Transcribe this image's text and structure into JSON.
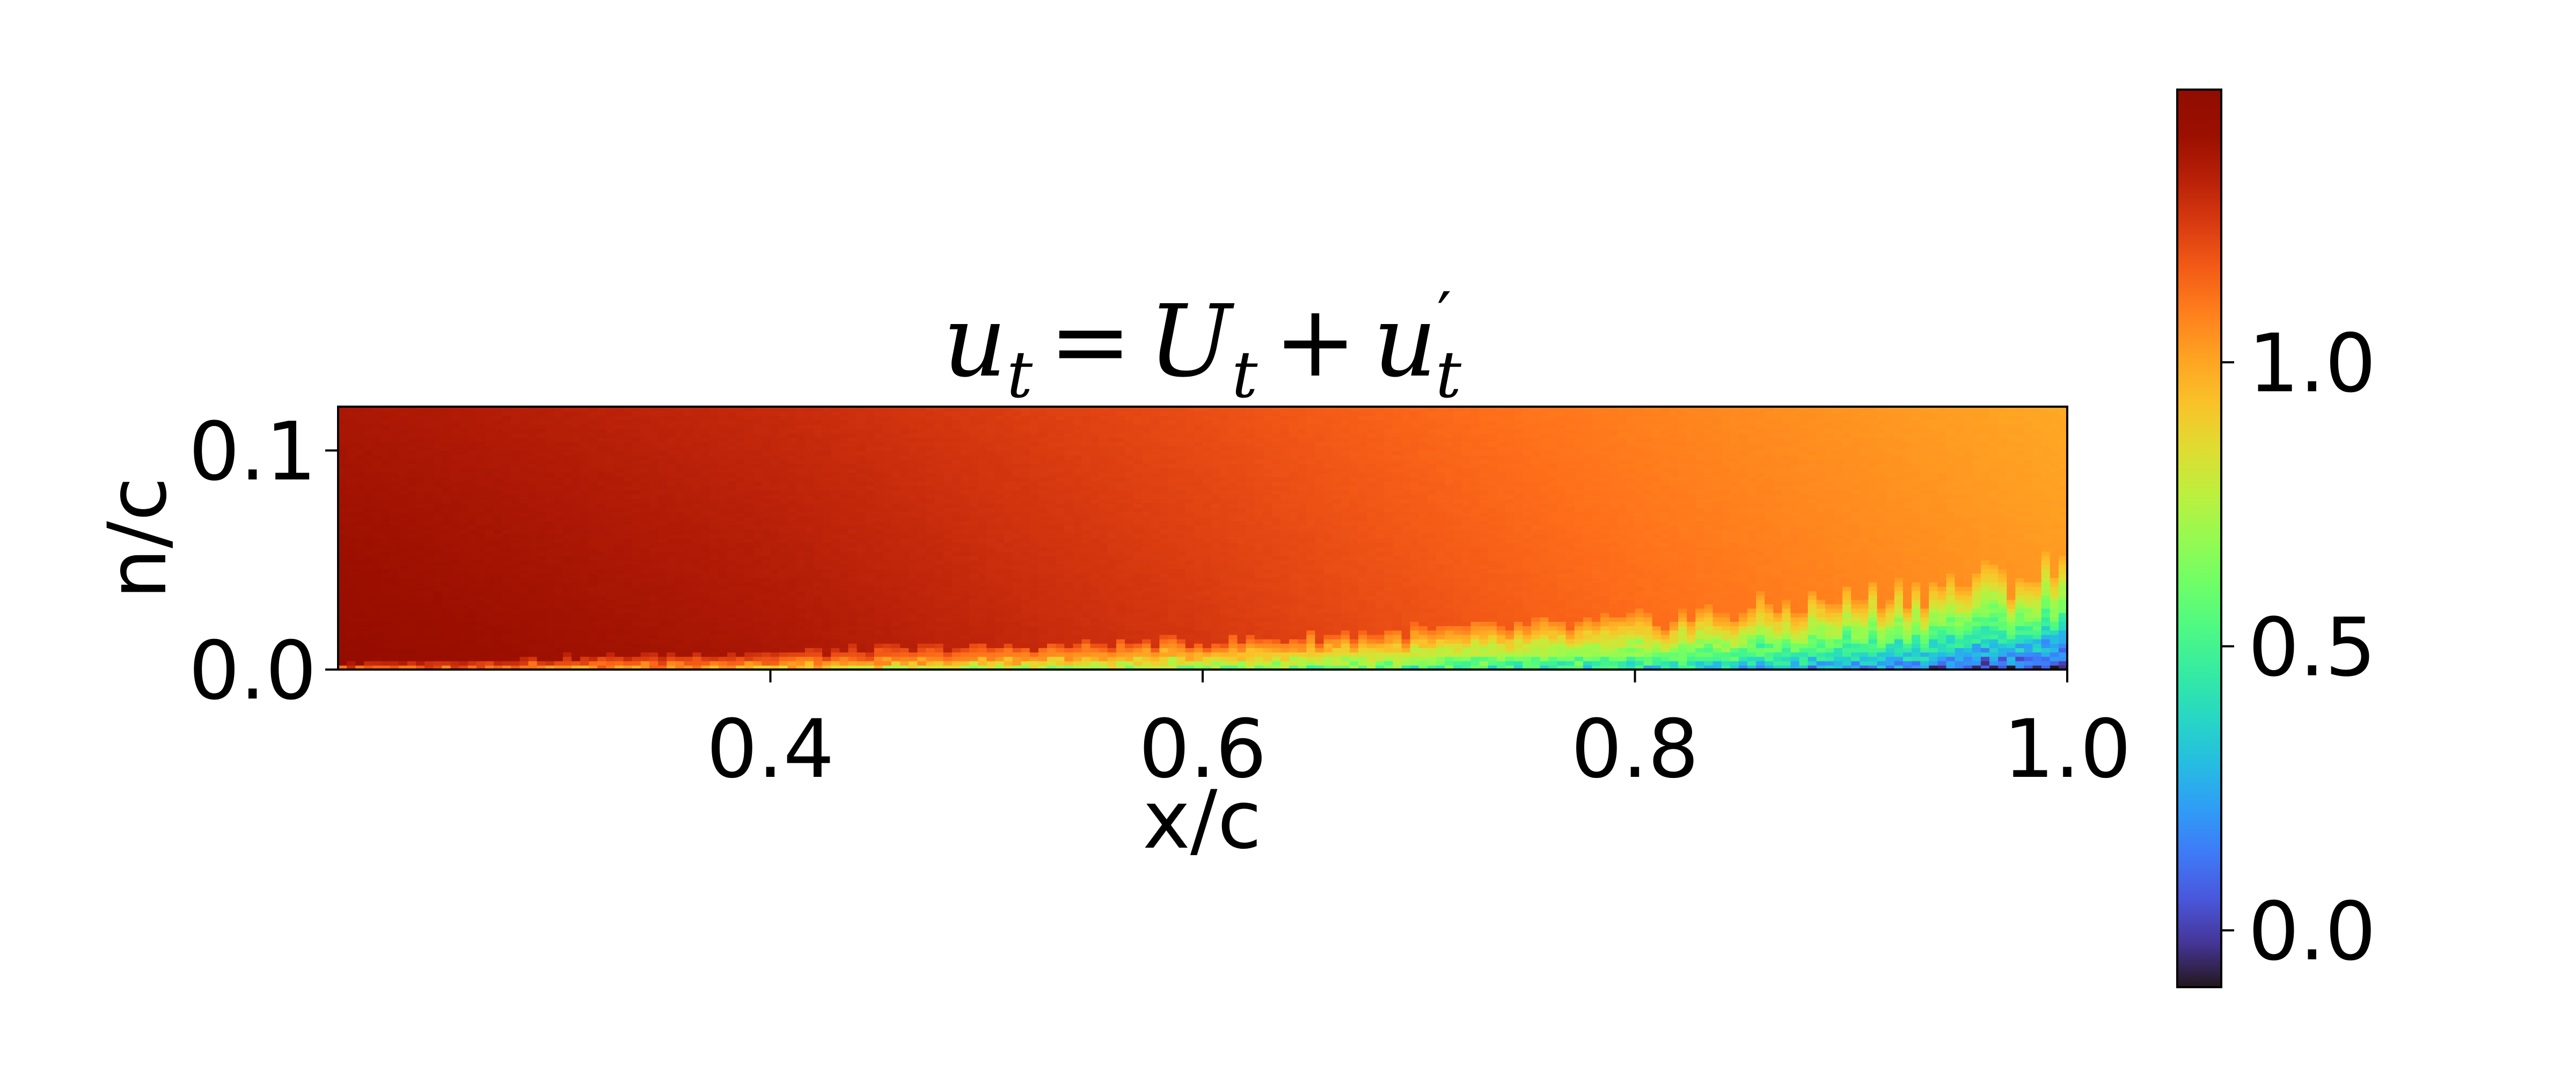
{
  "chart_data": {
    "type": "heatmap",
    "title": "u_t = U_t + u′_t",
    "title_parts": {
      "lhs": "u",
      "lhs_sub": "t",
      "eq": "=",
      "mid": "U",
      "mid_sub": "t",
      "plus": "+",
      "rhs": "u",
      "rhs_prime": "′",
      "rhs_sub": "t"
    },
    "xlabel": "x/c",
    "ylabel": "n/c",
    "xlim": [
      0.2,
      1.0
    ],
    "ylim": [
      0.0,
      0.12
    ],
    "xticks": [
      {
        "value": 0.4,
        "label": "0.4"
      },
      {
        "value": 0.6,
        "label": "0.6"
      },
      {
        "value": 0.8,
        "label": "0.8"
      },
      {
        "value": 1.0,
        "label": "1.0"
      }
    ],
    "yticks": [
      {
        "value": 0.0,
        "label": "0.0"
      },
      {
        "value": 0.1,
        "label": "0.1"
      }
    ],
    "colormap": "turbo",
    "colorbar": {
      "range": [
        -0.1,
        1.48
      ],
      "ticks": [
        {
          "value": 0.0,
          "label": "0.0"
        },
        {
          "value": 0.5,
          "label": "0.5"
        },
        {
          "value": 1.0,
          "label": "1.0"
        }
      ]
    },
    "field_description": {
      "freestream_value_at_x": [
        [
          0.2,
          1.45
        ],
        [
          0.4,
          1.38
        ],
        [
          0.6,
          1.28
        ],
        [
          0.8,
          1.16
        ],
        [
          1.0,
          1.06
        ]
      ],
      "boundary_layer_thickness_at_x": [
        [
          0.2,
          0.003
        ],
        [
          0.4,
          0.008
        ],
        [
          0.6,
          0.013
        ],
        [
          0.8,
          0.022
        ],
        [
          0.9,
          0.033
        ],
        [
          1.0,
          0.046
        ]
      ],
      "near_wall_min_value_at_x": [
        [
          0.2,
          1.1
        ],
        [
          0.4,
          0.9
        ],
        [
          0.6,
          0.6
        ],
        [
          0.8,
          0.35
        ],
        [
          0.9,
          0.15
        ],
        [
          1.0,
          -0.08
        ]
      ]
    }
  }
}
